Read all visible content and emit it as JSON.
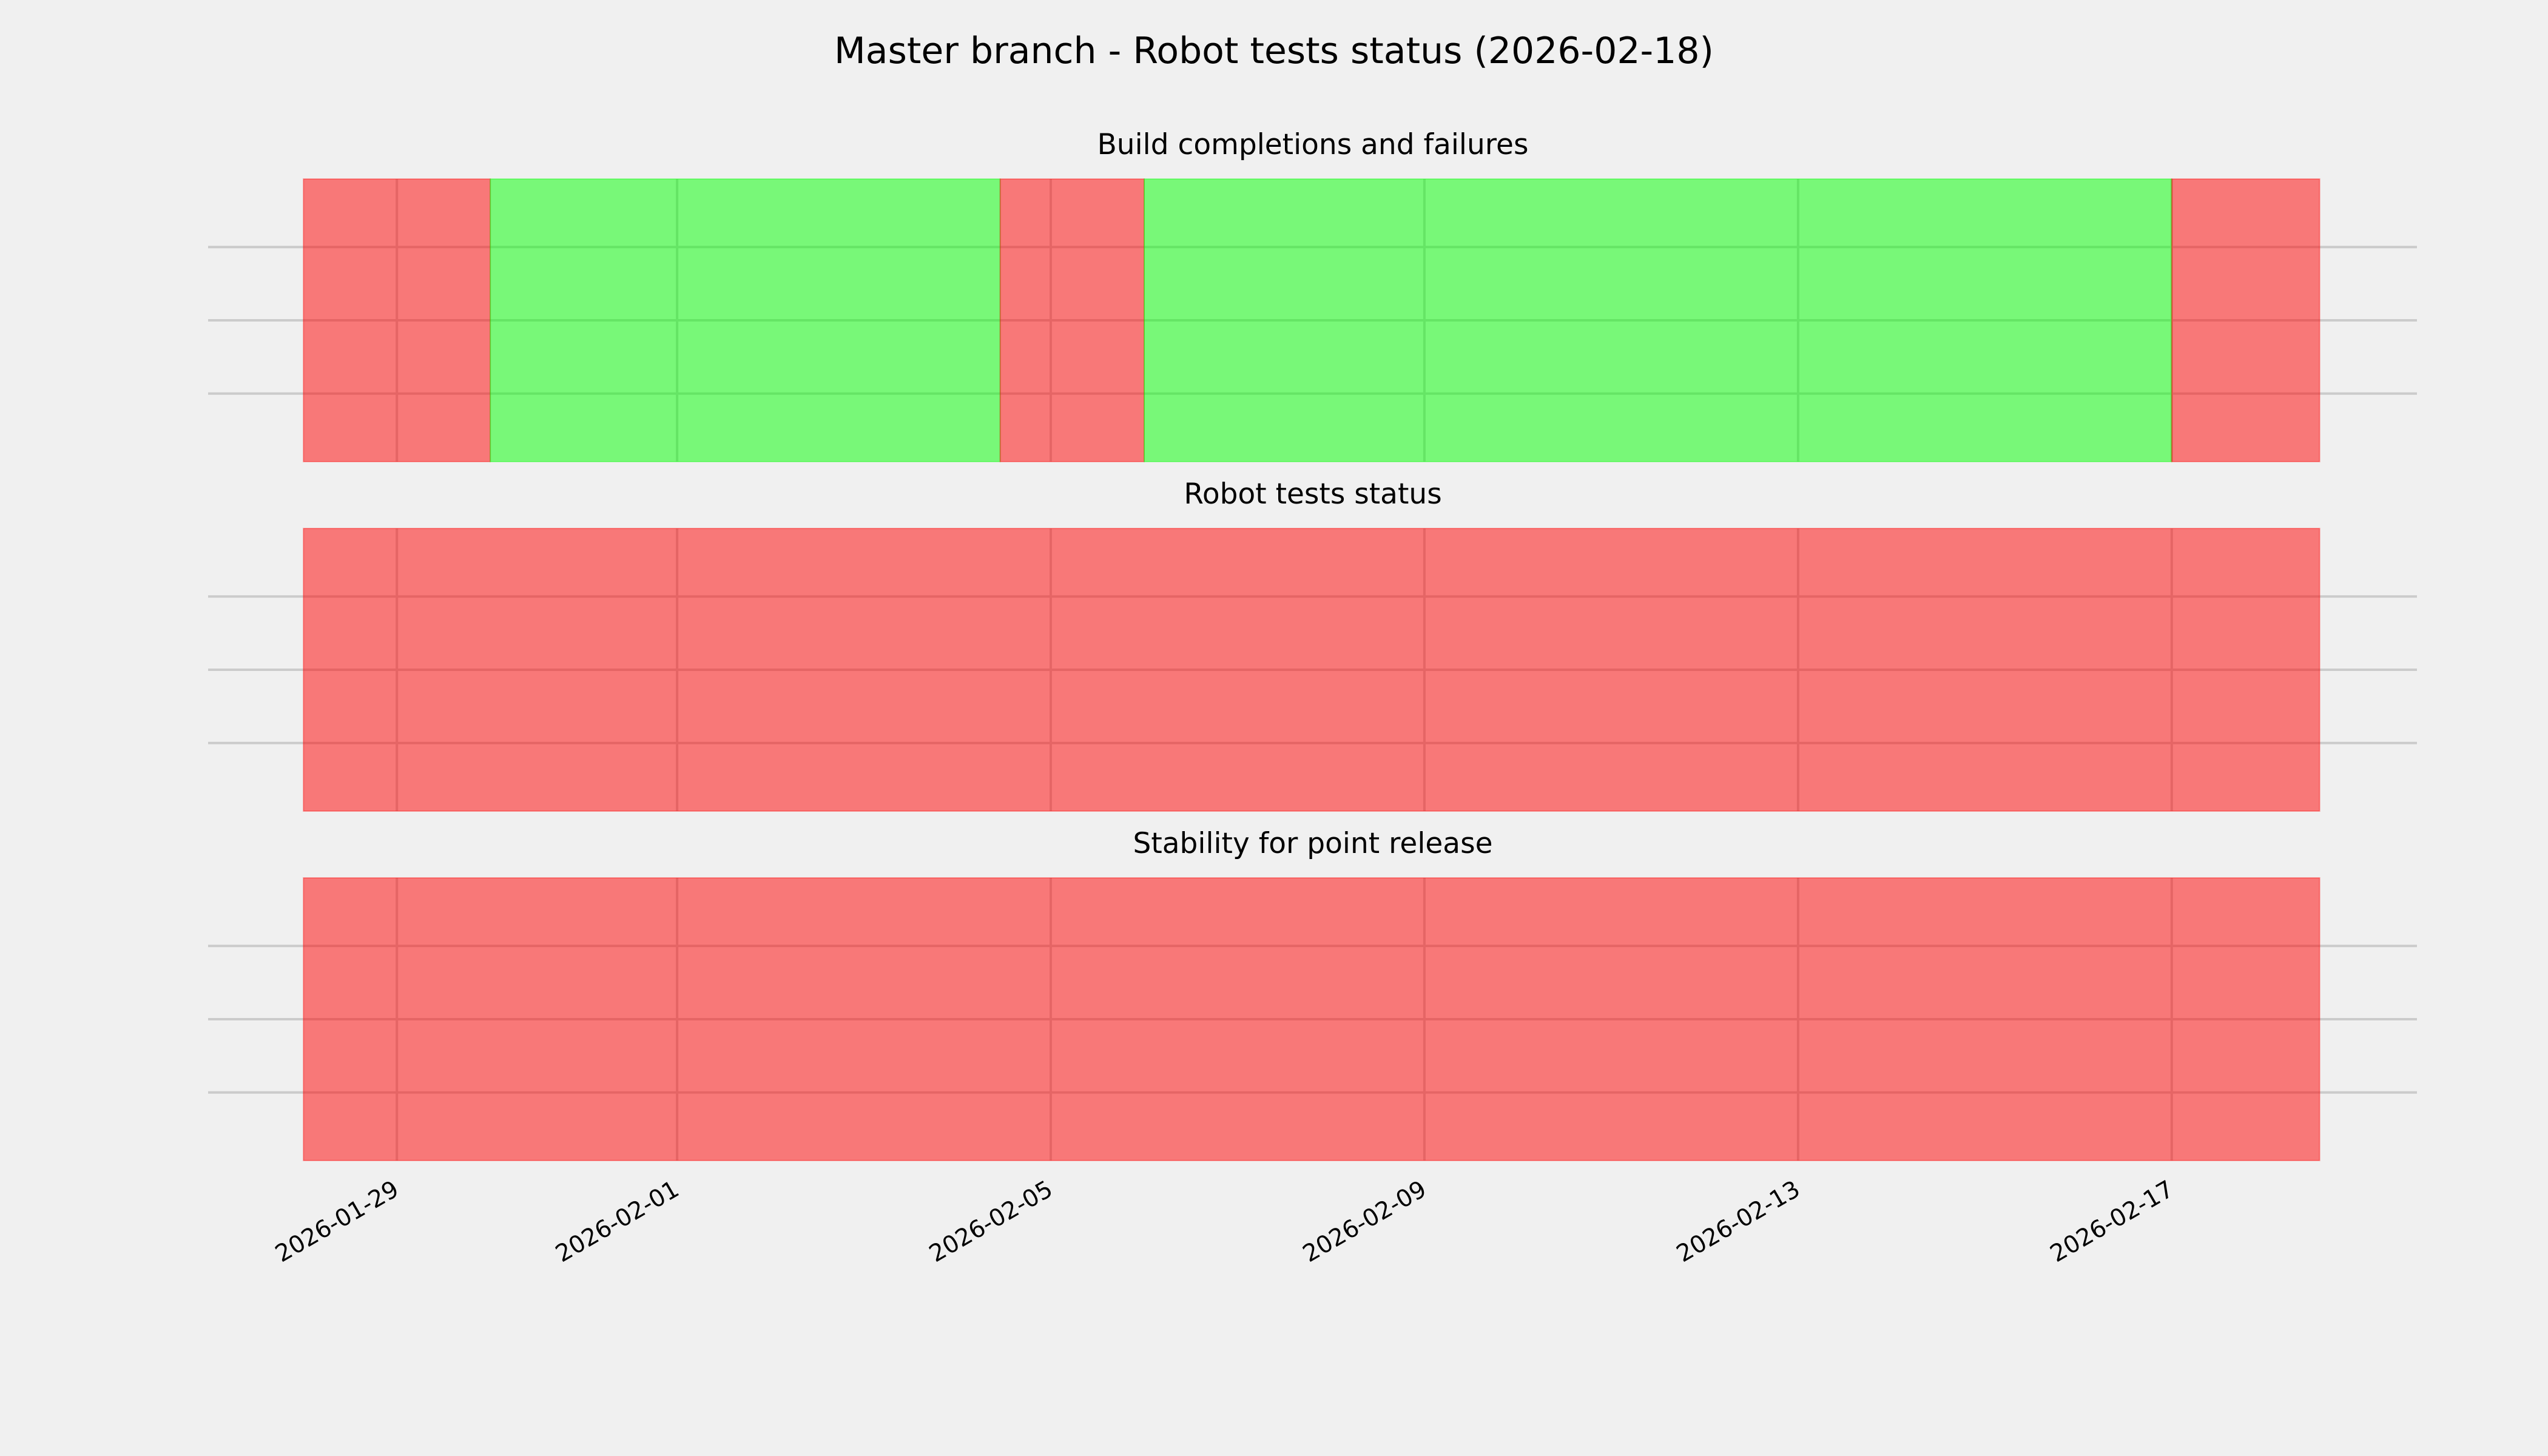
{
  "title": "Master branch - Robot tests status (2026-02-18)",
  "colors": {
    "background": "#f0f0f0",
    "fail": "#ff0000",
    "pass": "#00ff00",
    "grid": "#cbcbcb",
    "alpha": 0.5
  },
  "chart_data": [
    {
      "type": "timeline",
      "title": "Build completions and failures",
      "segments": [
        {
          "start": "2026-01-28T00:00",
          "end": "2026-01-30T00:00",
          "status": "fail"
        },
        {
          "start": "2026-01-30T00:00",
          "end": "2026-02-04T11:00",
          "status": "pass"
        },
        {
          "start": "2026-02-04T11:00",
          "end": "2026-02-06T00:00",
          "status": "fail"
        },
        {
          "start": "2026-02-06T00:00",
          "end": "2026-02-17T00:00",
          "status": "pass"
        },
        {
          "start": "2026-02-17T00:00",
          "end": "2026-02-18T14:00",
          "status": "fail"
        }
      ]
    },
    {
      "type": "timeline",
      "title": "Robot tests status",
      "segments": [
        {
          "start": "2026-01-28T00:00",
          "end": "2026-02-18T14:00",
          "status": "fail"
        }
      ]
    },
    {
      "type": "timeline",
      "title": "Stability for point release",
      "segments": [
        {
          "start": "2026-01-28T00:00",
          "end": "2026-02-18T14:00",
          "status": "fail"
        }
      ]
    }
  ],
  "xaxis": {
    "xlim": [
      "2026-01-26T23:30",
      "2026-02-19T15:00"
    ],
    "ticks": [
      "2026-01-29",
      "2026-02-01",
      "2026-02-05",
      "2026-02-09",
      "2026-02-13",
      "2026-02-17"
    ],
    "grid": true
  },
  "yaxis": {
    "grid": true,
    "ticks_hidden": true
  }
}
